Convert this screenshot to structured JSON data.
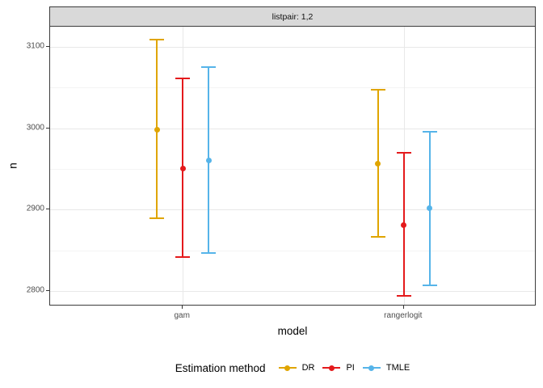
{
  "facet": {
    "label": "listpair: 1,2"
  },
  "axes": {
    "x_title": "model",
    "y_title": "n"
  },
  "legend": {
    "title": "Estimation method",
    "entries": [
      "DR",
      "PI",
      "TMLE"
    ]
  },
  "colors": {
    "DR": "#E0A500",
    "PI": "#E41A1C",
    "TMLE": "#56B4E9",
    "strip_bg": "#D9D9D9",
    "panel_border": "#3c3c3c",
    "grid_major": "#E8E8E8",
    "grid_minor": "#F4F4F4",
    "tick_text": "#4d4d4d"
  },
  "chart_data": {
    "type": "pointrange",
    "facet_label": "listpair: 1,2",
    "xlabel": "model",
    "ylabel": "n",
    "categories": [
      "gam",
      "rangerlogit"
    ],
    "y_ticks": [
      2800,
      2900,
      3000,
      3100
    ],
    "y_minor_ticks": [
      2850,
      2950,
      3050
    ],
    "ylim": [
      2781,
      3125
    ],
    "legend_title": "Estimation method",
    "legend_position": "bottom",
    "grid": "major and minor horizontal, major vertical at categories",
    "series": [
      {
        "name": "DR",
        "color": "#E0A500",
        "points": [
          {
            "category": "gam",
            "mean": 2998,
            "lower": 2889,
            "upper": 3109
          },
          {
            "category": "rangerlogit",
            "mean": 2956,
            "lower": 2867,
            "upper": 3047
          }
        ]
      },
      {
        "name": "PI",
        "color": "#E41A1C",
        "points": [
          {
            "category": "gam",
            "mean": 2951,
            "lower": 2842,
            "upper": 3061
          },
          {
            "category": "rangerlogit",
            "mean": 2881,
            "lower": 2794,
            "upper": 2970
          }
        ]
      },
      {
        "name": "TMLE",
        "color": "#56B4E9",
        "points": [
          {
            "category": "gam",
            "mean": 2960,
            "lower": 2847,
            "upper": 3075
          },
          {
            "category": "rangerlogit",
            "mean": 2902,
            "lower": 2807,
            "upper": 2996
          }
        ]
      }
    ]
  }
}
